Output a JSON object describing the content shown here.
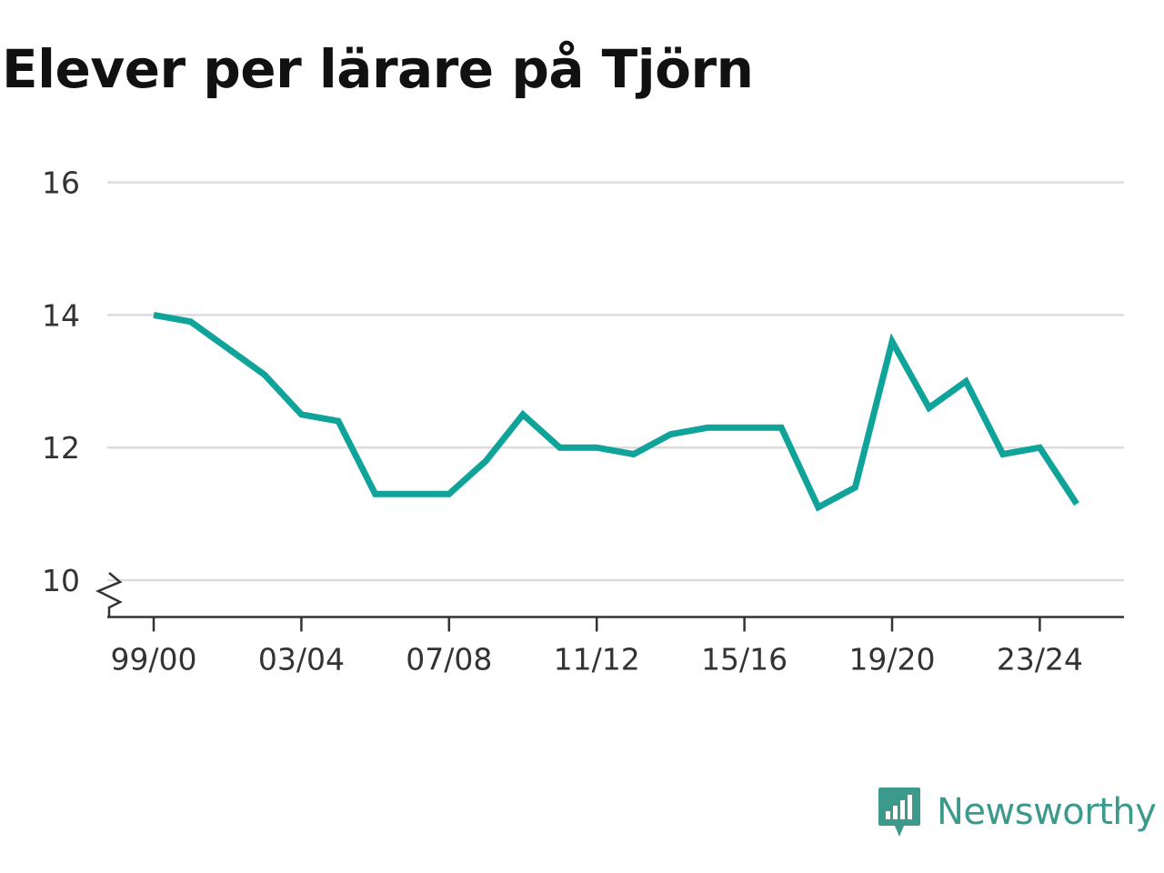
{
  "title": "Elever per lärare på Tjörn",
  "brand": {
    "name": "Newsworthy",
    "color": "#3c9a8c",
    "icon": "bar-chart-speech-bubble-icon"
  },
  "chart_data": {
    "type": "line",
    "title": "Elever per lärare på Tjörn",
    "xlabel": "",
    "ylabel": "",
    "x": [
      "99/00",
      "00/01",
      "01/02",
      "02/03",
      "03/04",
      "04/05",
      "05/06",
      "06/07",
      "07/08",
      "08/09",
      "09/10",
      "10/11",
      "11/12",
      "12/13",
      "13/14",
      "14/15",
      "15/16",
      "16/17",
      "17/18",
      "18/19",
      "19/20",
      "20/21",
      "21/22",
      "22/23",
      "23/24",
      "24/25"
    ],
    "series": [
      {
        "values": [
          14.0,
          13.9,
          13.5,
          13.1,
          12.5,
          12.4,
          11.3,
          11.3,
          11.3,
          11.8,
          12.5,
          12.0,
          12.0,
          11.9,
          12.2,
          12.3,
          12.3,
          12.3,
          11.1,
          11.4,
          13.6,
          12.6,
          13.0,
          11.9,
          12.0,
          11.15
        ],
        "color": "#0fa39a"
      }
    ],
    "x_tick_labels": [
      "99/00",
      "03/04",
      "07/08",
      "11/12",
      "15/16",
      "19/20",
      "23/24"
    ],
    "y_ticks": [
      10,
      12,
      14,
      16
    ],
    "ylim": [
      9.5,
      16
    ],
    "grid": true,
    "y_axis_break": true
  }
}
